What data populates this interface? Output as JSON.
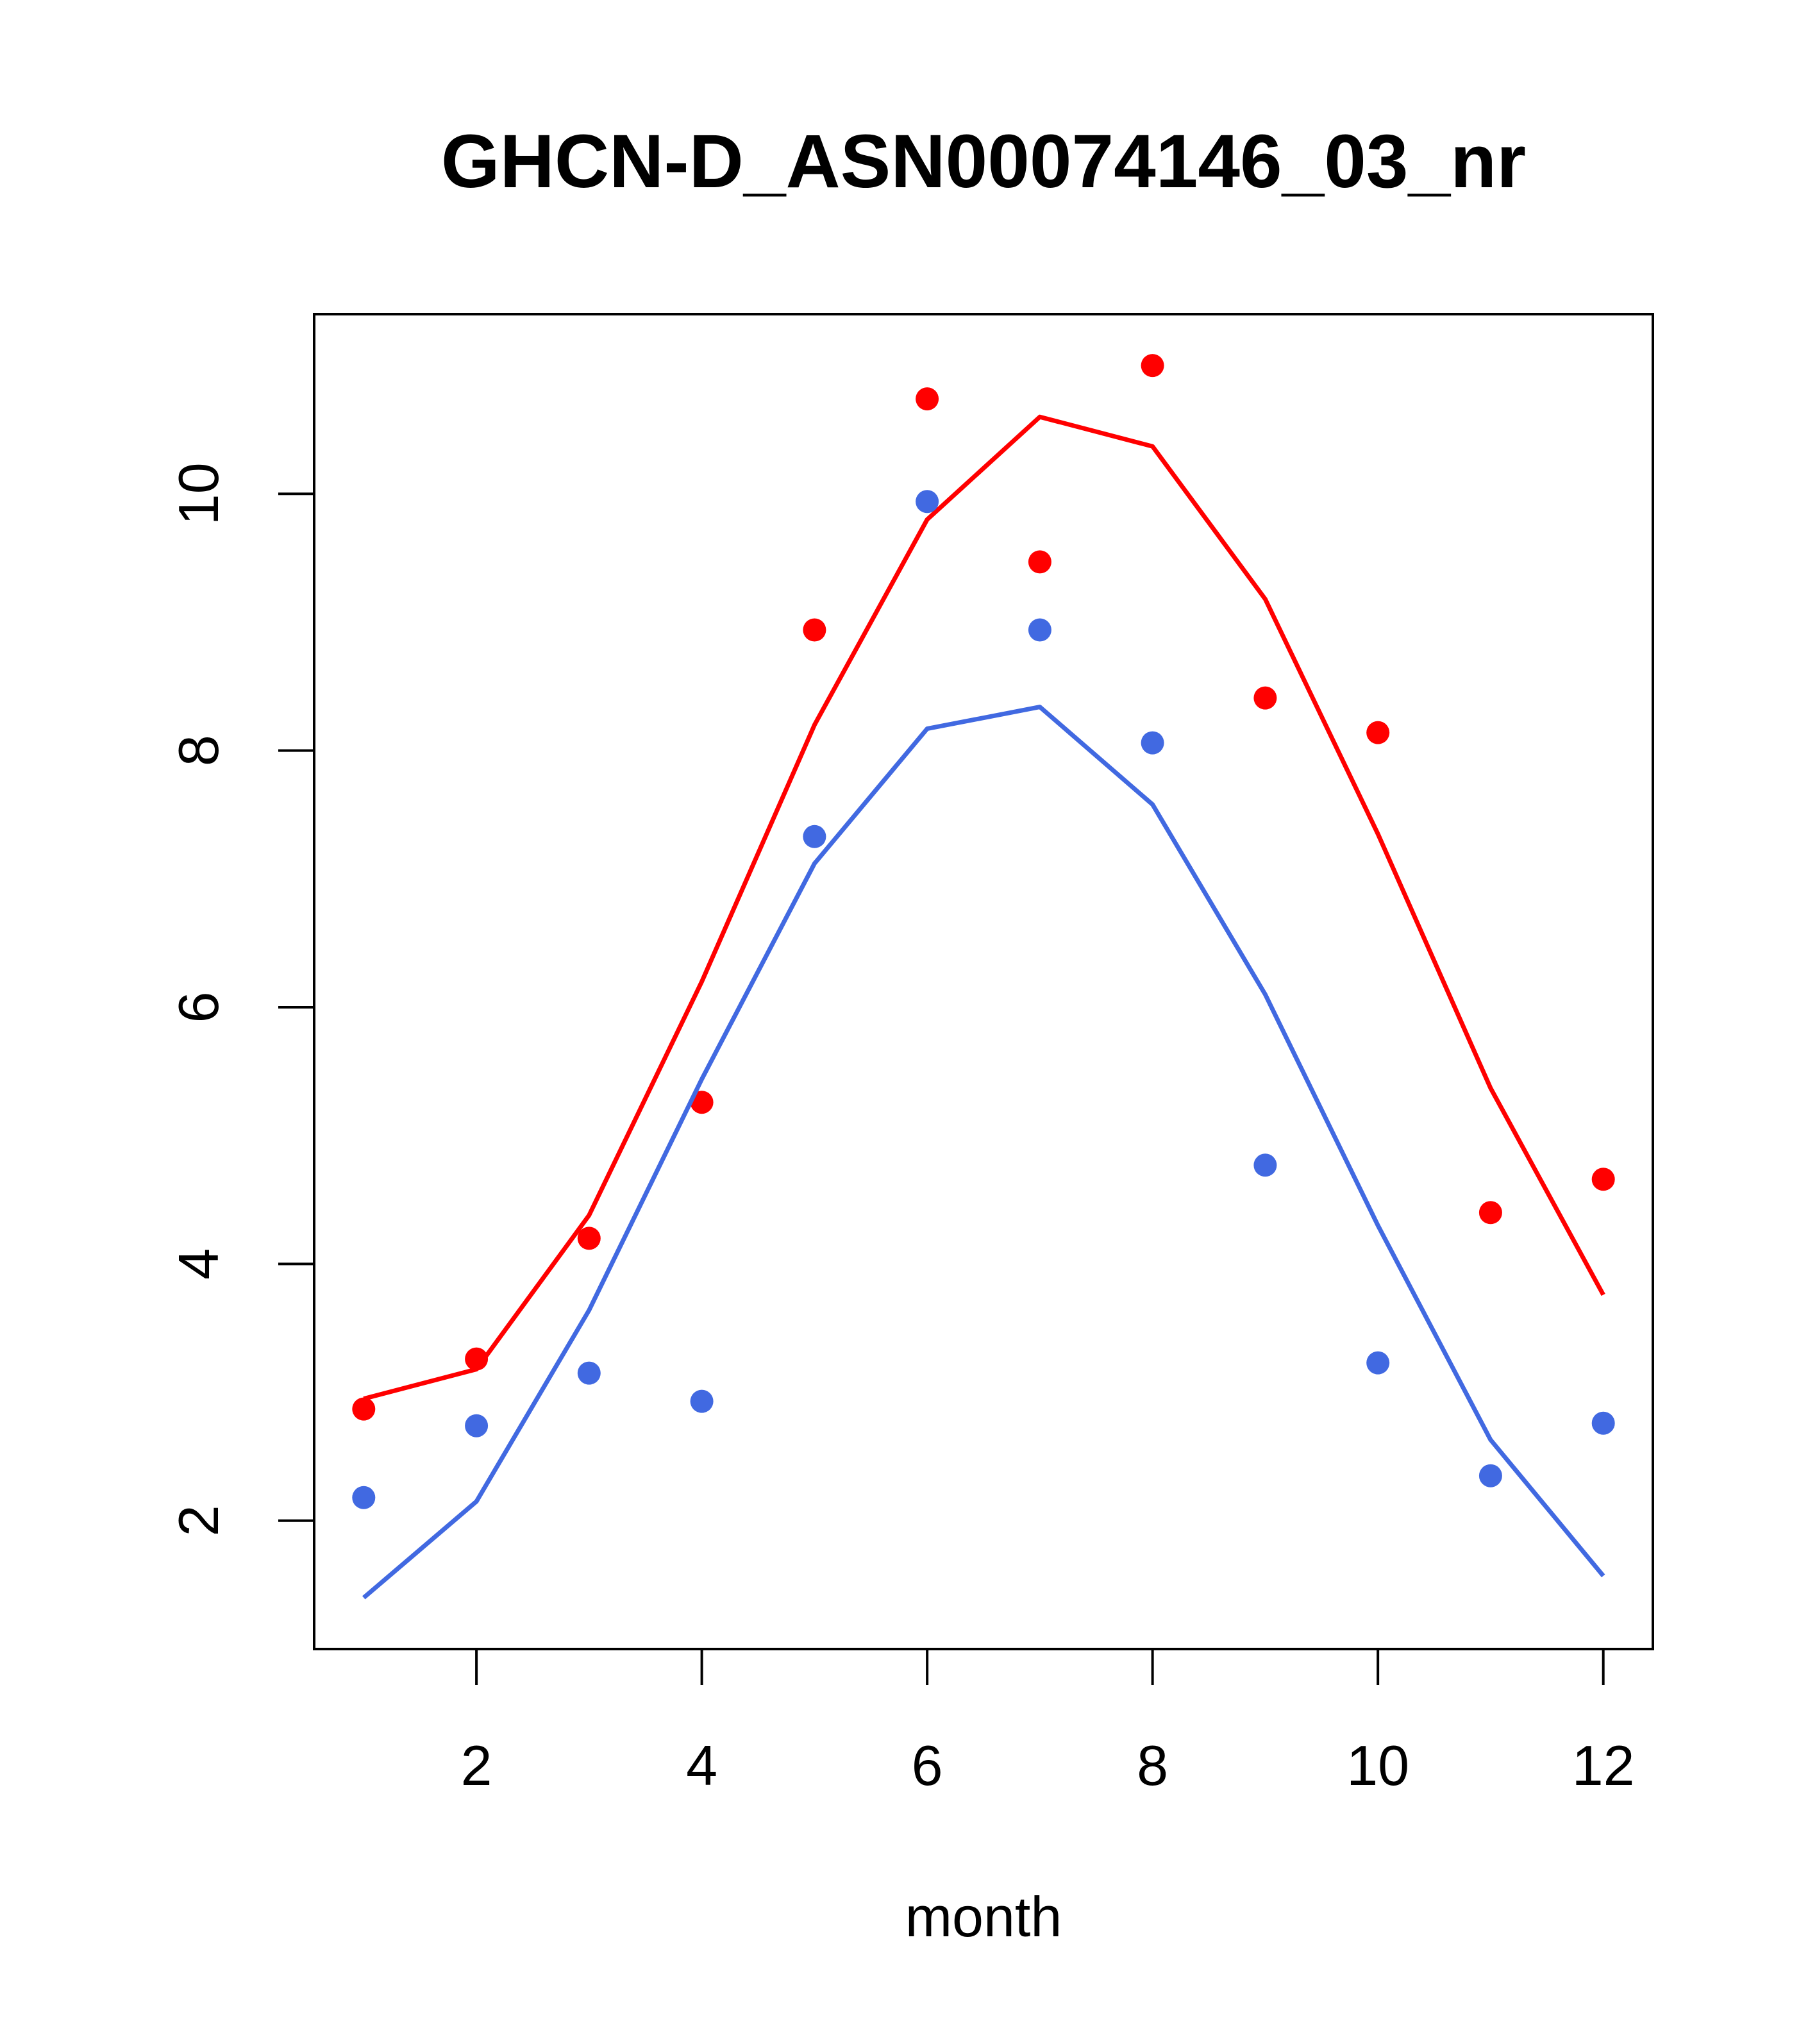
{
  "chart_data": {
    "type": "line",
    "title": "GHCN-D_ASN00074146_03_nr",
    "xlabel": "month",
    "ylabel": "",
    "xlim": [
      0.56,
      12.44
    ],
    "ylim": [
      1.0,
      11.4
    ],
    "xticks": [
      2,
      4,
      6,
      8,
      10,
      12
    ],
    "yticks": [
      2,
      4,
      6,
      8,
      10
    ],
    "grid": false,
    "legend": "none",
    "x": [
      1,
      2,
      3,
      4,
      5,
      6,
      7,
      8,
      9,
      10,
      11,
      12
    ],
    "series": [
      {
        "kind": "points",
        "color": "#ff0000",
        "values": [
          2.87,
          3.26,
          4.2,
          5.26,
          8.94,
          10.74,
          9.47,
          11.0,
          8.41,
          8.14,
          4.4,
          4.66
        ]
      },
      {
        "kind": "line",
        "color": "#ff0000",
        "values": [
          2.95,
          3.18,
          4.38,
          6.2,
          8.2,
          9.8,
          10.6,
          10.37,
          9.18,
          7.35,
          5.37,
          3.76
        ]
      },
      {
        "kind": "points",
        "color": "#4169e1",
        "values": [
          2.18,
          2.74,
          3.15,
          2.93,
          7.33,
          9.94,
          8.94,
          8.06,
          4.77,
          3.23,
          2.35,
          2.76
        ]
      },
      {
        "kind": "line",
        "color": "#4169e1",
        "values": [
          1.4,
          2.15,
          3.64,
          5.44,
          7.12,
          8.17,
          8.34,
          7.58,
          6.1,
          4.3,
          2.63,
          1.57
        ]
      }
    ]
  }
}
